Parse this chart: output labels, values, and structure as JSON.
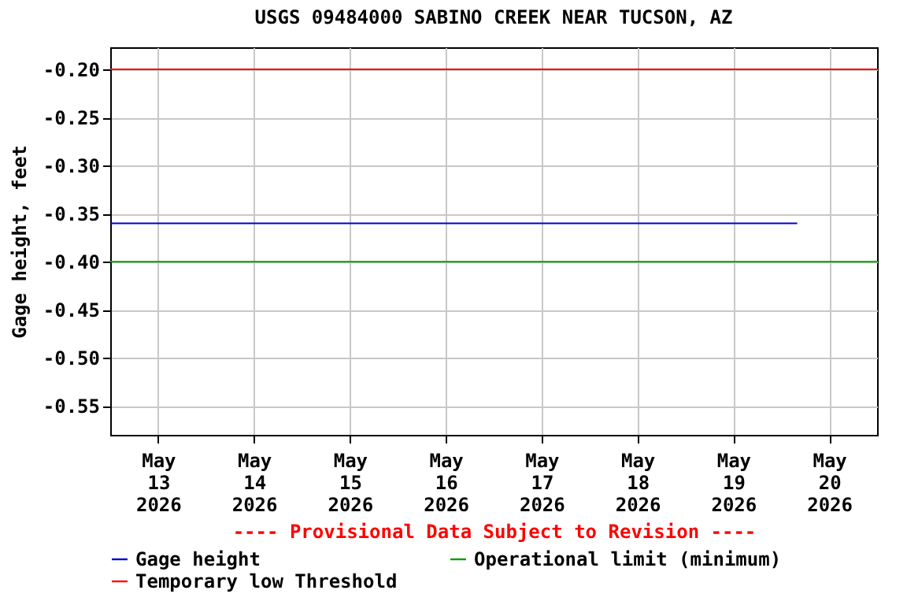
{
  "chart_data": {
    "type": "line",
    "title": "USGS 09484000 SABINO CREEK NEAR TUCSON, AZ",
    "ylabel": "Gage height, feet",
    "x": [
      "2026-05-12T12:00",
      "2026-05-19T16:00"
    ],
    "series": [
      {
        "name": "Gage height",
        "color": "#0000cc",
        "values": [
          -0.36,
          -0.36
        ]
      }
    ],
    "xlim": [
      "2026-05-12T12:00",
      "2026-05-20T12:00"
    ],
    "xticks": [
      {
        "value": "2026-05-13",
        "label": "May\n13\n2026"
      },
      {
        "value": "2026-05-14",
        "label": "May\n14\n2026"
      },
      {
        "value": "2026-05-15",
        "label": "May\n15\n2026"
      },
      {
        "value": "2026-05-16",
        "label": "May\n16\n2026"
      },
      {
        "value": "2026-05-17",
        "label": "May\n17\n2026"
      },
      {
        "value": "2026-05-18",
        "label": "May\n18\n2026"
      },
      {
        "value": "2026-05-19",
        "label": "May\n19\n2026"
      },
      {
        "value": "2026-05-20",
        "label": "May\n20\n2026"
      }
    ],
    "ylim": [
      -0.58,
      -0.177
    ],
    "yticks": [
      {
        "value": -0.2,
        "label": "-0.20"
      },
      {
        "value": -0.25,
        "label": "-0.25"
      },
      {
        "value": -0.3,
        "label": "-0.30"
      },
      {
        "value": -0.35,
        "label": "-0.35"
      },
      {
        "value": -0.4,
        "label": "-0.40"
      },
      {
        "value": -0.45,
        "label": "-0.45"
      },
      {
        "value": -0.5,
        "label": "-0.50"
      },
      {
        "value": -0.55,
        "label": "-0.55"
      }
    ],
    "ref_lines": [
      {
        "axis": "y",
        "value": -0.4,
        "label": "Operational limit (minimum)",
        "color": "#00a000"
      },
      {
        "axis": "y",
        "value": -0.2,
        "label": "Temporary low Threshold",
        "color": "#ff0000"
      }
    ],
    "annotations": [
      "---- Provisional Data Subject to Revision ----"
    ],
    "grid": true,
    "legend": "bottom"
  }
}
